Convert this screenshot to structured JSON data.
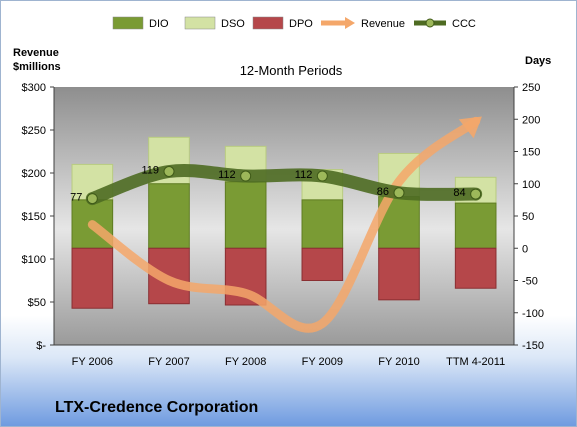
{
  "company": "LTX-Credence Corporation",
  "chart_data": {
    "type": "bar",
    "title": "12-Month Periods",
    "left_axis_label": "Revenue\n$millions",
    "right_axis_label": "Days",
    "categories": [
      "FY 2006",
      "FY 2007",
      "FY 2008",
      "FY 2009",
      "FY 2010",
      "TTM 4-2011"
    ],
    "left_axis": {
      "min": 0,
      "max": 300,
      "step": 50,
      "tick_labels": [
        "$-",
        "$50",
        "$100",
        "$150",
        "$200",
        "$250",
        "$300"
      ]
    },
    "right_axis": {
      "min": -150,
      "max": 250,
      "step": 50,
      "tick_labels": [
        "-150",
        "-100",
        "-50",
        "0",
        "50",
        "100",
        "150",
        "200",
        "250"
      ]
    },
    "series": [
      {
        "name": "DIO",
        "axis": "days",
        "values": [
          75,
          100,
          103,
          75,
          80,
          70
        ],
        "color": "#7a9b34"
      },
      {
        "name": "DSO",
        "axis": "days",
        "values": [
          55,
          72,
          55,
          47,
          67,
          40
        ],
        "color": "#d3e2a4"
      },
      {
        "name": "DPO",
        "axis": "days",
        "values": [
          -93,
          -86,
          -88,
          -50,
          -80,
          -62
        ],
        "color": "#b5474a"
      },
      {
        "name": "Revenue",
        "axis": "revenue",
        "values": [
          140,
          75,
          60,
          25,
          190,
          260
        ],
        "color": "#f4a76a"
      },
      {
        "name": "CCC",
        "axis": "days",
        "values": [
          77,
          119,
          112,
          112,
          86,
          84
        ],
        "labels": [
          "77",
          "119",
          "112",
          "112",
          "86",
          "84"
        ],
        "color": "#4e6b22"
      }
    ],
    "legend_position": "top",
    "grid": false
  }
}
